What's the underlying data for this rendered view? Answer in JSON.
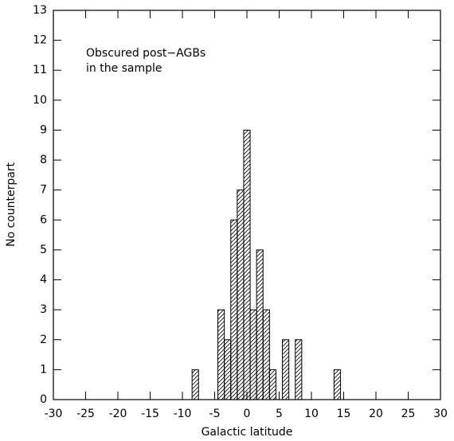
{
  "chart_data": {
    "type": "histogram",
    "xlabel": "Galactic latitude",
    "ylabel": "No counterpart",
    "annotation": [
      "Obscured post−AGBs",
      "in the sample"
    ],
    "bins": [
      -8.5,
      -7.5,
      -6.5,
      -5.5,
      -4.5,
      -3.5,
      -2.5,
      -1.5,
      -0.5,
      0.5,
      1.5,
      2.5,
      3.5,
      4.5,
      5.5,
      6.5,
      7.5,
      8.5,
      9.5,
      10.5,
      11.5,
      12.5,
      13.5,
      14.5
    ],
    "counts": [
      1,
      0,
      0,
      0,
      3,
      2,
      6,
      7,
      9,
      3,
      5,
      3,
      1,
      0,
      2,
      0,
      2,
      0,
      0,
      0,
      0,
      0,
      1
    ],
    "color": "#000000",
    "xlim": [
      -30,
      30
    ],
    "xticks": [
      -30,
      -25,
      -20,
      -15,
      -10,
      -5,
      0,
      5,
      10,
      15,
      20,
      25,
      30
    ],
    "ylim": [
      0,
      13
    ],
    "yticks": [
      0,
      1,
      2,
      3,
      4,
      5,
      6,
      7,
      8,
      9,
      10,
      11,
      12,
      13
    ]
  }
}
